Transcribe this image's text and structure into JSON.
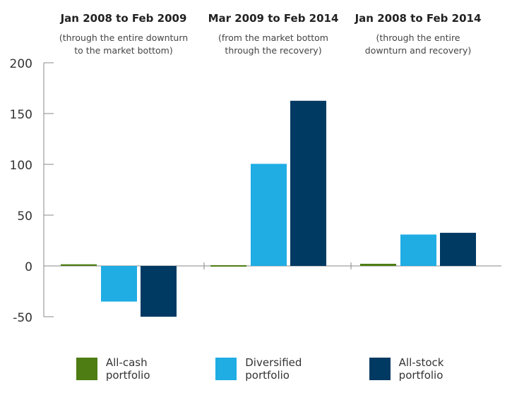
{
  "chart_data": {
    "type": "bar",
    "categories": [
      {
        "title": "Jan 2008 to Feb 2009",
        "subtitle": "(through the entire downturn\nto the market bottom)"
      },
      {
        "title": "Mar 2009 to Feb 2014",
        "subtitle": "(from the market bottom\nthrough the recovery)"
      },
      {
        "title": "Jan 2008 to Feb 2014",
        "subtitle": "(through the entire\ndownturn and recovery)"
      }
    ],
    "series": [
      {
        "name": "All-cash portfolio",
        "color": "#4e7d14",
        "values": [
          1.6,
          0.5,
          2.1
        ]
      },
      {
        "name": "Diversified portfolio",
        "color": "#1fade4",
        "values": [
          -35.1,
          100.5,
          30.9
        ]
      },
      {
        "name": "All-stock portfolio",
        "color": "#003a63",
        "values": [
          -50.0,
          162.6,
          32.6
        ]
      }
    ],
    "yticks": [
      "200",
      "150",
      "100",
      "50",
      "0",
      "-50"
    ],
    "ylim": [
      -50,
      200
    ],
    "grid": false,
    "legend_position": "bottom"
  }
}
